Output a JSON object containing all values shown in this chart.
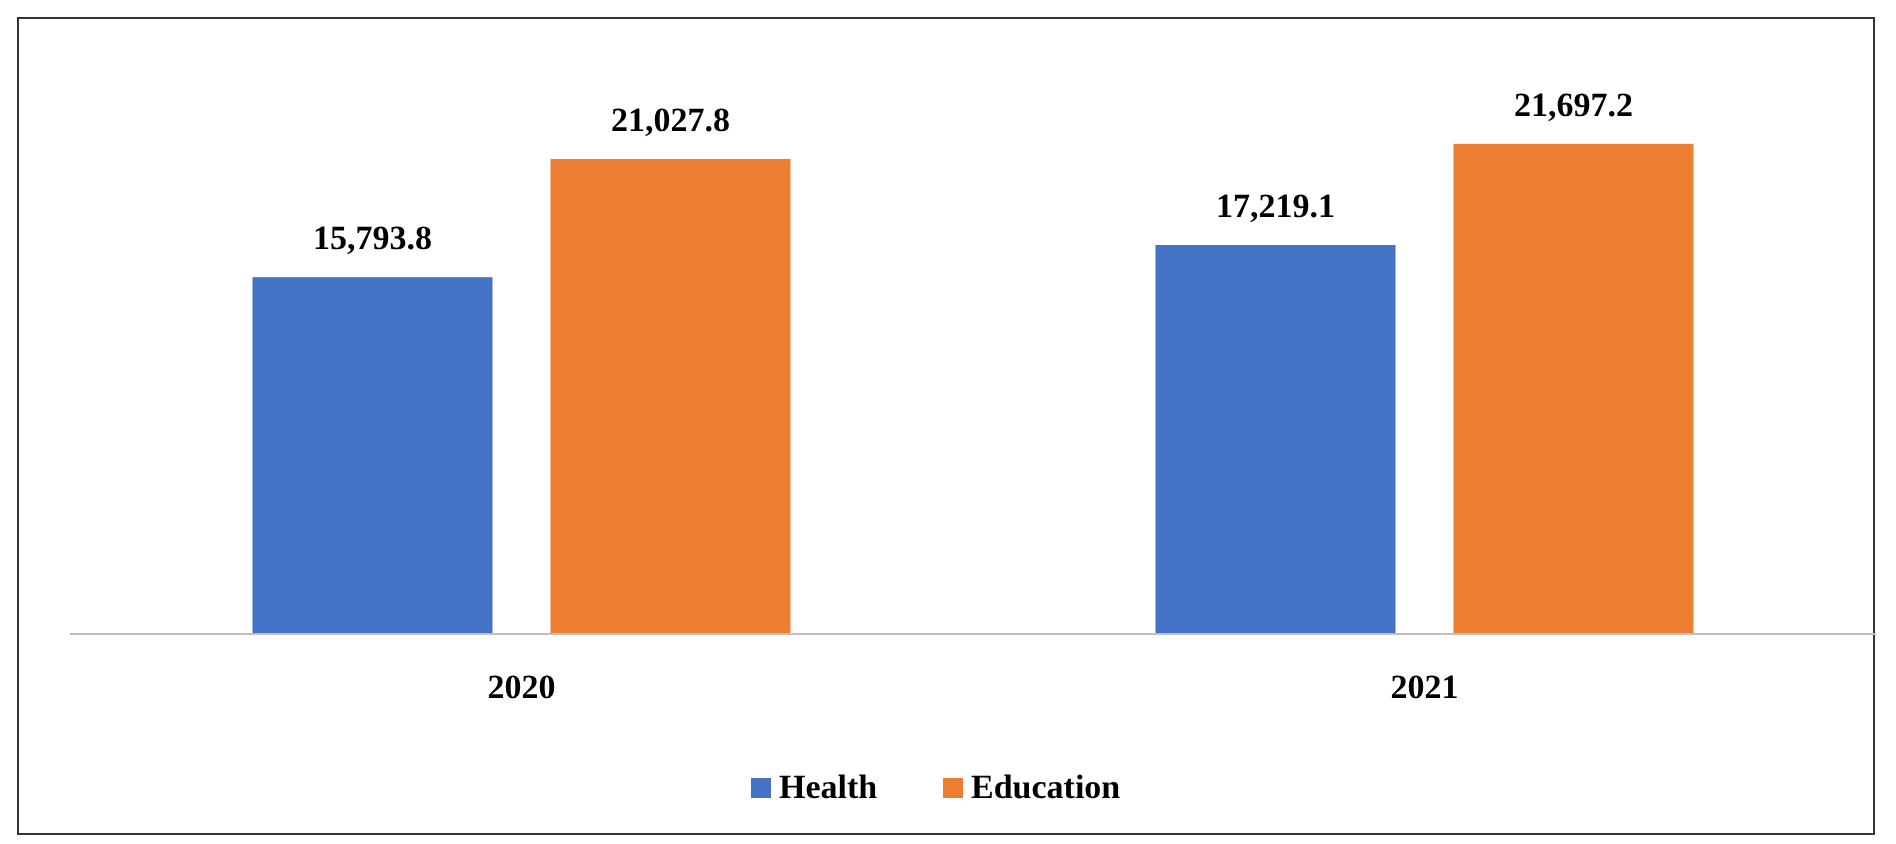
{
  "chart_data": {
    "type": "bar",
    "categories": [
      "2020",
      "2021"
    ],
    "series": [
      {
        "name": "Health",
        "color": "#4472c4",
        "values": [
          15793.8,
          17219.1
        ],
        "value_labels": [
          "15,793.8",
          "17,219.1"
        ]
      },
      {
        "name": "Education",
        "color": "#ed7d31",
        "values": [
          21027.8,
          21697.2
        ],
        "value_labels": [
          "21,027.8",
          "21,697.2"
        ]
      }
    ],
    "legend": "bottom"
  }
}
